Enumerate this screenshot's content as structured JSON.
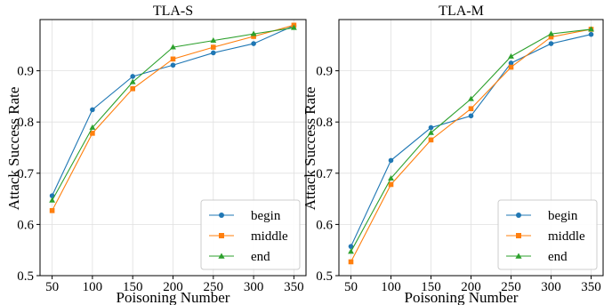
{
  "colors": {
    "begin": "#1f77b4",
    "middle": "#ff7f0e",
    "end": "#2ca02c",
    "grid": "#e0e0e0",
    "axis": "#000000",
    "legend_border": "#cccccc"
  },
  "chart_data": [
    {
      "type": "line",
      "title": "TLA-S",
      "xlabel": "Poisoning Number",
      "ylabel": "Attack Success Rate",
      "x": [
        50,
        100,
        150,
        200,
        250,
        300,
        350
      ],
      "xlim": [
        35,
        365
      ],
      "ylim": [
        0.5,
        1.0
      ],
      "yticks": [
        0.5,
        0.6,
        0.7,
        0.8,
        0.9
      ],
      "yticklabels": [
        "0.5",
        "0.6",
        "0.7",
        "0.8",
        "0.9"
      ],
      "xticklabels": [
        "50",
        "100",
        "150",
        "200",
        "250",
        "300",
        "350"
      ],
      "grid": true,
      "legend_position": "lower-right",
      "series": [
        {
          "name": "begin",
          "marker": "circle",
          "values": [
            0.656,
            0.824,
            0.889,
            0.911,
            0.935,
            0.953,
            0.988
          ]
        },
        {
          "name": "middle",
          "marker": "square",
          "values": [
            0.627,
            0.778,
            0.865,
            0.923,
            0.946,
            0.967,
            0.989
          ]
        },
        {
          "name": "end",
          "marker": "triangle",
          "values": [
            0.647,
            0.789,
            0.878,
            0.946,
            0.959,
            0.972,
            0.984
          ]
        }
      ]
    },
    {
      "type": "line",
      "title": "TLA-M",
      "xlabel": "Poisoning Number",
      "ylabel": "Attack Success Rate",
      "x": [
        50,
        100,
        150,
        200,
        250,
        300,
        350
      ],
      "xlim": [
        35,
        365
      ],
      "ylim": [
        0.5,
        1.0
      ],
      "yticks": [
        0.5,
        0.6,
        0.7,
        0.8,
        0.9
      ],
      "yticklabels": [
        "0.5",
        "0.6",
        "0.7",
        "0.8",
        "0.9"
      ],
      "xticklabels": [
        "50",
        "100",
        "150",
        "200",
        "250",
        "300",
        "350"
      ],
      "grid": true,
      "legend_position": "lower-right",
      "series": [
        {
          "name": "begin",
          "marker": "circle",
          "values": [
            0.557,
            0.725,
            0.789,
            0.812,
            0.915,
            0.953,
            0.971
          ]
        },
        {
          "name": "middle",
          "marker": "square",
          "values": [
            0.527,
            0.678,
            0.765,
            0.826,
            0.907,
            0.966,
            0.981
          ]
        },
        {
          "name": "end",
          "marker": "triangle",
          "values": [
            0.547,
            0.69,
            0.779,
            0.845,
            0.928,
            0.972,
            0.981
          ]
        }
      ]
    }
  ]
}
